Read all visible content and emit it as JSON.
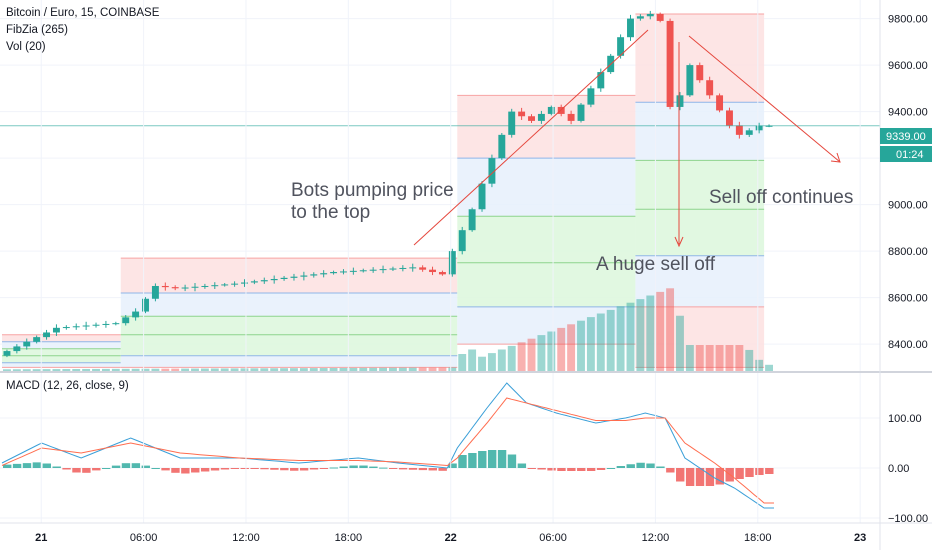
{
  "header": {
    "symbol": "Bitcoin / Euro, 15, COINBASE",
    "indicator_fib": "FibZia (265)",
    "indicator_vol": "Vol (20)",
    "indicator_macd": "MACD (12, 26, close, 9)"
  },
  "price_tag": {
    "price": "9339.00",
    "timer": "01:24"
  },
  "colors": {
    "up": "#26a69a",
    "down": "#ef5350",
    "macd_line": "#3a9fd8",
    "signal_line": "#ff6d4f",
    "annotation_arrow": "#e5473d",
    "price_line": "#26a69a",
    "band_red": "#fde0e0",
    "band_blue": "#e6f0fb",
    "band_green": "#dcf7dc"
  },
  "annotations": {
    "pump": [
      "Bots pumping price",
      "to the top"
    ],
    "selloff": "A huge sell off",
    "continues": "Sell off continues"
  },
  "chart_data": [
    {
      "type": "candlestick",
      "title": "Bitcoin / Euro, 15, COINBASE",
      "x_ticks": [
        "21",
        "06:00",
        "12:00",
        "18:00",
        "22",
        "06:00",
        "12:00",
        "18:00",
        "23"
      ],
      "y_ticks": [
        "9800.00",
        "9600.00",
        "9400.00",
        "9200.00",
        "9000.00",
        "8800.00",
        "8600.00",
        "8400.00"
      ],
      "y_tick_values": [
        9800,
        9600,
        9400,
        9200,
        9000,
        8800,
        8600,
        8400
      ],
      "ylim": [
        8280,
        9880
      ],
      "last_price": 9339,
      "price_keypoints": [
        [
          0,
          8350
        ],
        [
          6,
          8470
        ],
        [
          12,
          8490
        ],
        [
          14,
          8540
        ],
        [
          16,
          8650
        ],
        [
          18,
          8640
        ],
        [
          24,
          8660
        ],
        [
          30,
          8690
        ],
        [
          34,
          8710
        ],
        [
          38,
          8720
        ],
        [
          42,
          8730
        ],
        [
          45,
          8700
        ],
        [
          46,
          8800
        ],
        [
          48,
          8980
        ],
        [
          50,
          9200
        ],
        [
          52,
          9400
        ],
        [
          54,
          9360
        ],
        [
          56,
          9420
        ],
        [
          58,
          9360
        ],
        [
          60,
          9500
        ],
        [
          62,
          9640
        ],
        [
          64,
          9800
        ],
        [
          66,
          9820
        ],
        [
          67,
          9790
        ],
        [
          68,
          9420
        ],
        [
          69,
          9470
        ],
        [
          70,
          9600
        ],
        [
          72,
          9470
        ],
        [
          74,
          9340
        ],
        [
          75,
          9300
        ],
        [
          77,
          9339
        ]
      ],
      "volume_points": [
        [
          0,
          0.03
        ],
        [
          46,
          0.05
        ],
        [
          47,
          0.35
        ],
        [
          48,
          0.15
        ],
        [
          68,
          0.95
        ],
        [
          69,
          0.3
        ],
        [
          75,
          0.3
        ],
        [
          77,
          0.08
        ]
      ],
      "fib_zones": [
        {
          "x0": 0,
          "x1": 12,
          "levels": [
            8440,
            8410,
            8380,
            8350,
            8320,
            8300
          ]
        },
        {
          "x0": 12,
          "x1": 46,
          "levels": [
            8770,
            8620,
            8520,
            8440,
            8350,
            8300
          ]
        },
        {
          "x0": 46,
          "x1": 64,
          "levels": [
            9470,
            9200,
            8950,
            8750,
            8560,
            8400
          ]
        },
        {
          "x0": 64,
          "x1": 77,
          "levels": [
            9820,
            9440,
            9190,
            8980,
            8780,
            8560,
            8300
          ]
        }
      ]
    },
    {
      "type": "line",
      "title": "MACD (12, 26, close, 9)",
      "y_ticks": [
        "100.00",
        "0.00",
        "−100.00"
      ],
      "y_tick_values": [
        100,
        0,
        -100
      ],
      "ylim": [
        -110,
        190
      ],
      "series": [
        {
          "name": "MACD",
          "points": [
            [
              0,
              10
            ],
            [
              4,
              50
            ],
            [
              8,
              20
            ],
            [
              13,
              60
            ],
            [
              18,
              20
            ],
            [
              24,
              20
            ],
            [
              30,
              10
            ],
            [
              36,
              20
            ],
            [
              40,
              10
            ],
            [
              45,
              0
            ],
            [
              46,
              40
            ],
            [
              49,
              120
            ],
            [
              51,
              170
            ],
            [
              53,
              130
            ],
            [
              56,
              110
            ],
            [
              60,
              90
            ],
            [
              63,
              100
            ],
            [
              65,
              110
            ],
            [
              67,
              100
            ],
            [
              69,
              20
            ],
            [
              72,
              -20
            ],
            [
              74,
              -40
            ],
            [
              77,
              -80
            ]
          ]
        },
        {
          "name": "Signal",
          "points": [
            [
              0,
              5
            ],
            [
              4,
              40
            ],
            [
              8,
              30
            ],
            [
              13,
              50
            ],
            [
              18,
              30
            ],
            [
              24,
              20
            ],
            [
              30,
              15
            ],
            [
              36,
              15
            ],
            [
              40,
              12
            ],
            [
              45,
              5
            ],
            [
              46,
              20
            ],
            [
              49,
              90
            ],
            [
              51,
              140
            ],
            [
              53,
              130
            ],
            [
              56,
              115
            ],
            [
              60,
              95
            ],
            [
              63,
              95
            ],
            [
              65,
              100
            ],
            [
              67,
              100
            ],
            [
              69,
              50
            ],
            [
              72,
              10
            ],
            [
              74,
              -20
            ],
            [
              77,
              -70
            ]
          ]
        }
      ]
    }
  ]
}
